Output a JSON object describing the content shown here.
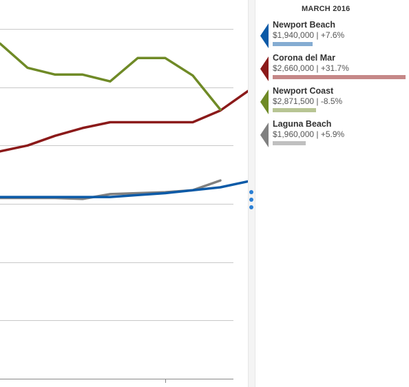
{
  "chart_data": {
    "type": "line",
    "ylim": [
      0,
      3600000
    ],
    "grid": true,
    "series": [
      {
        "name": "Newport Beach",
        "color": "#0b5aa7",
        "values": [
          1870000,
          1870000,
          1870000,
          1870000,
          1870000,
          1870000,
          1890000,
          1910000,
          1940000,
          1970000,
          2030000
        ]
      },
      {
        "name": "Corona del Mar",
        "color": "#8b1a1a",
        "values": [
          2280000,
          2340000,
          2400000,
          2500000,
          2580000,
          2640000,
          2640000,
          2640000,
          2640000,
          2760000,
          2960000
        ]
      },
      {
        "name": "Newport Coast",
        "color": "#6f8a26",
        "values": [
          3450000,
          3450000,
          3200000,
          3130000,
          3130000,
          3060000,
          3300000,
          3300000,
          3120000,
          2770000
        ]
      },
      {
        "name": "Laguna Beach",
        "color": "#808080",
        "values": [
          1910000,
          1860000,
          1860000,
          1860000,
          1850000,
          1900000,
          1910000,
          1920000,
          1940000,
          2040000
        ]
      }
    ]
  },
  "legend": {
    "title": "MARCH 2016",
    "entries": [
      {
        "name": "Newport Beach",
        "stat": "$1,940,000 | +7.6%",
        "color": "#0b5aa7",
        "bar_color": "#85acd2",
        "change_pct": 7.6
      },
      {
        "name": "Corona del Mar",
        "stat": "$2,660,000 | +31.7%",
        "color": "#8b1a1a",
        "bar_color": "#c58888",
        "change_pct": 31.7
      },
      {
        "name": "Newport Coast",
        "stat": "$2,871,500 | -8.5%",
        "color": "#6f8a26",
        "bar_color": "#b8c594",
        "change_pct": -8.5
      },
      {
        "name": "Laguna Beach",
        "stat": "$1,960,000 | +5.9%",
        "color": "#808080",
        "bar_color": "#c0c0c0",
        "change_pct": 5.9
      }
    ]
  },
  "icons": {
    "drag_handle": "vertical-dots-icon"
  }
}
